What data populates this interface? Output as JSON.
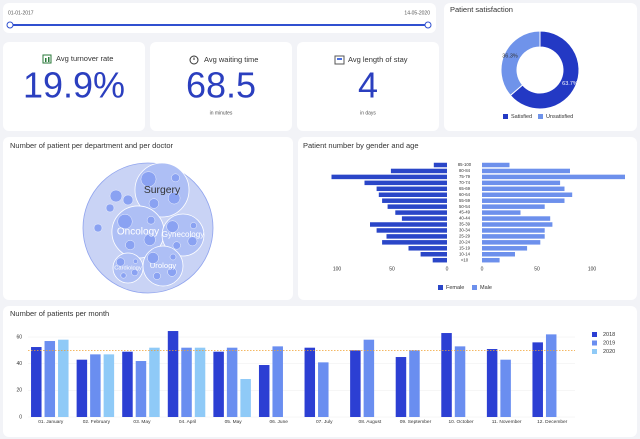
{
  "date_range": {
    "start": "01-01-2017",
    "end": "14-05-2020"
  },
  "kpis": [
    {
      "title": "Avg turnover rate",
      "value": "19.9%"
    },
    {
      "title": "Avg waiting time",
      "value": "68.5",
      "unit": "in minutes"
    },
    {
      "title": "Avg length of stay",
      "value": "4",
      "unit": "in days"
    }
  ],
  "chart_data": [
    {
      "type": "pie",
      "title": "Patient satisfaction",
      "categories": [
        "Satisfied",
        "Unsatisfied"
      ],
      "values": [
        63.7,
        36.3
      ],
      "value_labels": [
        "63.7%",
        "36.3%"
      ],
      "colors": [
        "#2339c4",
        "#6f93ea"
      ],
      "donut": true
    },
    {
      "type": "bubble",
      "title": "Number of patient per department and per doctor",
      "categories": [
        "Surgery",
        "Oncology",
        "Gynecology",
        "Urology",
        "Cardiology"
      ],
      "values": [
        730,
        680,
        440,
        400,
        225
      ],
      "color": "#aebff5"
    },
    {
      "type": "pyramid",
      "title": "Patient number by gender and age",
      "categories": [
        "85-100",
        "80-84",
        "75-79",
        "70-74",
        "65-69",
        "60-64",
        "55-59",
        "50-54",
        "45-49",
        "40-44",
        "35-39",
        "30-34",
        "25-29",
        "20-24",
        "15-19",
        "10-14",
        "<10"
      ],
      "series": [
        {
          "name": "Female",
          "color": "#2a46c8",
          "values": [
            12,
            51,
            105,
            75,
            64,
            62,
            59,
            54,
            47,
            41,
            70,
            64,
            55,
            59,
            35,
            24,
            13
          ]
        },
        {
          "name": "Male",
          "color": "#6d90ec",
          "values": [
            25,
            80,
            130,
            71,
            75,
            82,
            75,
            57,
            35,
            62,
            64,
            57,
            57,
            53,
            41,
            30,
            16
          ]
        }
      ],
      "xticks_left": [
        100,
        50,
        0
      ],
      "xticks_right": [
        0,
        50,
        100
      ]
    },
    {
      "type": "bar",
      "title": "Number of patients per month",
      "categories": [
        "01. January",
        "02. February",
        "03. May",
        "04. April",
        "05. May",
        "06. June",
        "07. July",
        "08. August",
        "09. September",
        "10. October",
        "11. November",
        "12. December"
      ],
      "series": [
        {
          "name": "2018",
          "color": "#2c3fd3",
          "values": [
            52.5,
            43,
            49,
            64.5,
            49,
            39,
            52,
            50,
            45,
            63,
            51,
            56
          ]
        },
        {
          "name": "2019",
          "color": "#6a8ef0",
          "values": [
            57,
            47,
            42,
            52,
            52,
            53,
            41,
            58,
            50,
            53,
            43,
            62
          ]
        },
        {
          "name": "2020",
          "color": "#8fcaf7",
          "values": [
            58,
            47,
            52,
            52,
            28.5,
            null,
            null,
            null,
            null,
            null,
            null,
            null
          ]
        }
      ],
      "ylim": [
        0,
        70
      ],
      "yticks": [
        0,
        20,
        40,
        60
      ],
      "average_line": 50,
      "average_color": "#f0a030",
      "grid": true
    }
  ]
}
